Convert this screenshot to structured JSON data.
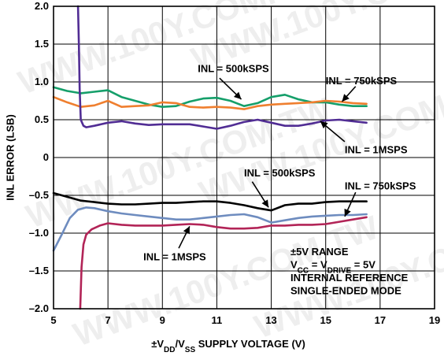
{
  "chart_data": {
    "type": "line",
    "title": "",
    "xlabel": "±VDD/VSS SUPPLY VOLTAGE (V)",
    "xlabel_parts": [
      {
        "text": "±V",
        "sub": false
      },
      {
        "text": "DD",
        "sub": true
      },
      {
        "text": "/V",
        "sub": false
      },
      {
        "text": "SS",
        "sub": true
      },
      {
        "text": " SUPPLY VOLTAGE (V)",
        "sub": false
      }
    ],
    "ylabel": "INL ERROR (LSB)",
    "xlim": [
      5,
      19
    ],
    "ylim": [
      -2.0,
      2.0
    ],
    "xticks": [
      5,
      7,
      9,
      11,
      13,
      15,
      17,
      19
    ],
    "xtick_labels": [
      "5",
      "7",
      "9",
      "11",
      "13",
      "15",
      "17",
      "19"
    ],
    "yticks": [
      -2.0,
      -1.5,
      -1.0,
      -0.5,
      0,
      0.5,
      1.0,
      1.5,
      2.0
    ],
    "ytick_labels": [
      "–2.0",
      "–1.5",
      "–1.0",
      "–0.5",
      "0",
      "0.5",
      "1.0",
      "1.5",
      "2.0"
    ],
    "grid": true,
    "series": [
      {
        "key": "pos_500k",
        "color": "#159f6a",
        "x": [
          5.0,
          5.5,
          6.0,
          6.5,
          7.0,
          7.5,
          8.0,
          8.5,
          9.0,
          9.5,
          10.0,
          10.5,
          11.0,
          11.5,
          12.0,
          12.5,
          13.0,
          13.5,
          14.0,
          14.5,
          15.0,
          15.5,
          16.0,
          16.5
        ],
        "y": [
          0.93,
          0.88,
          0.85,
          0.87,
          0.89,
          0.8,
          0.75,
          0.7,
          0.67,
          0.68,
          0.74,
          0.78,
          0.79,
          0.75,
          0.68,
          0.72,
          0.8,
          0.83,
          0.77,
          0.73,
          0.73,
          0.7,
          0.68,
          0.68
        ]
      },
      {
        "key": "pos_750k",
        "color": "#ef7f2f",
        "x": [
          5.0,
          5.5,
          6.0,
          6.5,
          7.0,
          7.5,
          8.0,
          8.5,
          9.0,
          9.5,
          10.0,
          10.5,
          11.0,
          11.5,
          12.0,
          12.5,
          13.0,
          13.5,
          14.0,
          14.5,
          15.0,
          15.5,
          16.0,
          16.5
        ],
        "y": [
          0.8,
          0.73,
          0.67,
          0.69,
          0.75,
          0.67,
          0.68,
          0.69,
          0.73,
          0.72,
          0.67,
          0.66,
          0.67,
          0.66,
          0.64,
          0.68,
          0.7,
          0.71,
          0.72,
          0.73,
          0.75,
          0.74,
          0.72,
          0.71
        ]
      },
      {
        "key": "pos_1m",
        "color": "#512d94",
        "x": [
          5.9,
          5.93,
          5.96,
          6.0,
          6.1,
          6.2,
          6.5,
          7.0,
          7.5,
          8.0,
          8.5,
          9.0,
          9.5,
          10.0,
          10.5,
          11.0,
          11.5,
          12.0,
          12.5,
          13.0,
          13.5,
          14.0,
          14.5,
          15.0,
          15.5,
          16.0,
          16.5
        ],
        "y": [
          2.0,
          1.5,
          0.9,
          0.5,
          0.42,
          0.4,
          0.42,
          0.46,
          0.48,
          0.45,
          0.43,
          0.44,
          0.44,
          0.44,
          0.41,
          0.38,
          0.42,
          0.47,
          0.5,
          0.46,
          0.42,
          0.42,
          0.45,
          0.49,
          0.5,
          0.48,
          0.46
        ]
      },
      {
        "key": "neg_500k",
        "color": "#000000",
        "x": [
          5.0,
          5.5,
          6.0,
          6.5,
          7.0,
          7.5,
          8.0,
          8.5,
          9.0,
          9.5,
          10.0,
          10.5,
          11.0,
          11.5,
          12.0,
          12.5,
          13.0,
          13.5,
          14.0,
          14.5,
          15.0,
          15.5,
          16.0,
          16.5
        ],
        "y": [
          -0.47,
          -0.52,
          -0.57,
          -0.59,
          -0.61,
          -0.62,
          -0.62,
          -0.61,
          -0.6,
          -0.6,
          -0.59,
          -0.58,
          -0.58,
          -0.6,
          -0.63,
          -0.67,
          -0.7,
          -0.63,
          -0.61,
          -0.61,
          -0.59,
          -0.58,
          -0.58,
          -0.58
        ]
      },
      {
        "key": "neg_750k",
        "color": "#6e8cbf",
        "x": [
          5.0,
          5.3,
          5.6,
          5.9,
          6.2,
          6.5,
          7.0,
          7.5,
          8.0,
          8.5,
          9.0,
          9.5,
          10.0,
          10.5,
          11.0,
          11.5,
          12.0,
          12.5,
          13.0,
          13.5,
          14.0,
          14.5,
          15.0,
          15.5,
          16.0,
          16.5
        ],
        "y": [
          -1.23,
          -1.02,
          -0.8,
          -0.69,
          -0.66,
          -0.67,
          -0.71,
          -0.74,
          -0.76,
          -0.78,
          -0.8,
          -0.82,
          -0.82,
          -0.8,
          -0.78,
          -0.76,
          -0.75,
          -0.79,
          -0.86,
          -0.83,
          -0.8,
          -0.78,
          -0.77,
          -0.76,
          -0.76,
          -0.75
        ]
      },
      {
        "key": "neg_1m",
        "color": "#b22457",
        "x": [
          5.98,
          6.03,
          6.1,
          6.2,
          6.4,
          6.7,
          7.0,
          7.5,
          8.0,
          8.5,
          9.0,
          9.5,
          10.0,
          10.5,
          11.0,
          11.5,
          12.0,
          12.5,
          13.0,
          13.5,
          14.0,
          14.5,
          15.0,
          15.5,
          16.0,
          16.5
        ],
        "y": [
          -2.0,
          -1.45,
          -1.15,
          -1.02,
          -0.95,
          -0.9,
          -0.87,
          -0.89,
          -0.9,
          -0.9,
          -0.9,
          -0.89,
          -0.88,
          -0.89,
          -0.92,
          -0.94,
          -0.94,
          -0.93,
          -0.9,
          -0.9,
          -0.89,
          -0.89,
          -0.88,
          -0.85,
          -0.82,
          -0.79
        ]
      }
    ],
    "annotations": [
      {
        "key": "lbl_pos_500k",
        "text": "INL = 500kSPS",
        "tx": 10.3,
        "ty": 1.17,
        "arrow": [
          11.1,
          1.05,
          11.9,
          0.77
        ]
      },
      {
        "key": "lbl_pos_750k",
        "text": "INL = 750kSPS",
        "tx": 15.0,
        "ty": 1.01,
        "arrow": [
          16.1,
          0.94,
          15.6,
          0.74
        ]
      },
      {
        "key": "lbl_pos_1m",
        "text": "INL = 1MSPS",
        "tx": 15.7,
        "ty": 0.1,
        "arrow": [
          15.7,
          0.21,
          14.8,
          0.48
        ]
      },
      {
        "key": "lbl_neg_500k",
        "text": "INL = 500kSPS",
        "tx": 12.0,
        "ty": -0.21,
        "arrow": [
          12.3,
          -0.32,
          12.9,
          -0.66
        ]
      },
      {
        "key": "lbl_neg_750k",
        "text": "INL = 750kSPS",
        "tx": 15.7,
        "ty": -0.38,
        "arrow": [
          16.1,
          -0.46,
          15.7,
          -0.78
        ]
      },
      {
        "key": "lbl_neg_1m",
        "text": "INL = 1MSPS",
        "tx": 8.3,
        "ty": -1.32,
        "arrow": [
          9.6,
          -1.2,
          10.0,
          -0.91
        ]
      }
    ],
    "info_lines": [
      {
        "key": "info_range",
        "parts": [
          {
            "text": "±5V RANGE",
            "sub": false
          }
        ]
      },
      {
        "key": "info_supply",
        "parts": [
          {
            "text": "V",
            "sub": false
          },
          {
            "text": "CC",
            "sub": true
          },
          {
            "text": " = V",
            "sub": false
          },
          {
            "text": "DRIVE",
            "sub": true
          },
          {
            "text": " = 5V",
            "sub": false
          }
        ]
      },
      {
        "key": "info_reference",
        "parts": [
          {
            "text": "INTERNAL REFERENCE",
            "sub": false
          }
        ]
      },
      {
        "key": "info_mode",
        "parts": [
          {
            "text": "SINGLE-ENDED MODE",
            "sub": false
          }
        ]
      }
    ],
    "watermark_text": "WWW.100Y.COM.TW",
    "colors": {
      "grid": "#000000",
      "axes": "#000000",
      "watermark": "#d9d9d9"
    }
  }
}
